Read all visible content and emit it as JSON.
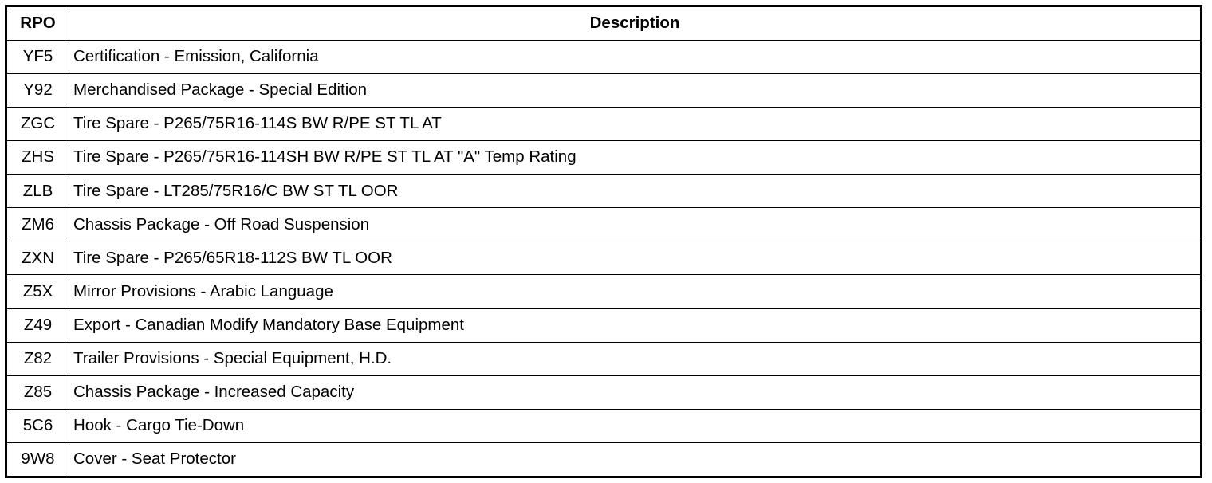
{
  "table": {
    "headers": {
      "rpo": "RPO",
      "description": "Description"
    },
    "rows": [
      {
        "rpo": "YF5",
        "description": "Certification - Emission, California"
      },
      {
        "rpo": "Y92",
        "description": "Merchandised Package - Special Edition"
      },
      {
        "rpo": "ZGC",
        "description": "Tire Spare - P265/75R16-114S BW R/PE ST TL AT"
      },
      {
        "rpo": "ZHS",
        "description": "Tire Spare - P265/75R16-114SH BW R/PE ST TL AT \"A\" Temp Rating"
      },
      {
        "rpo": "ZLB",
        "description": "Tire Spare - LT285/75R16/C BW ST TL OOR"
      },
      {
        "rpo": "ZM6",
        "description": "Chassis Package - Off Road Suspension"
      },
      {
        "rpo": "ZXN",
        "description": "Tire Spare - P265/65R18-112S BW TL OOR"
      },
      {
        "rpo": "Z5X",
        "description": "Mirror Provisions - Arabic Language"
      },
      {
        "rpo": "Z49",
        "description": "Export - Canadian Modify Mandatory Base Equipment"
      },
      {
        "rpo": "Z82",
        "description": "Trailer Provisions - Special Equipment, H.D."
      },
      {
        "rpo": "Z85",
        "description": "Chassis Package - Increased Capacity"
      },
      {
        "rpo": "5C6",
        "description": "Hook - Cargo Tie-Down"
      },
      {
        "rpo": "9W8",
        "description": "Cover - Seat Protector"
      }
    ]
  }
}
